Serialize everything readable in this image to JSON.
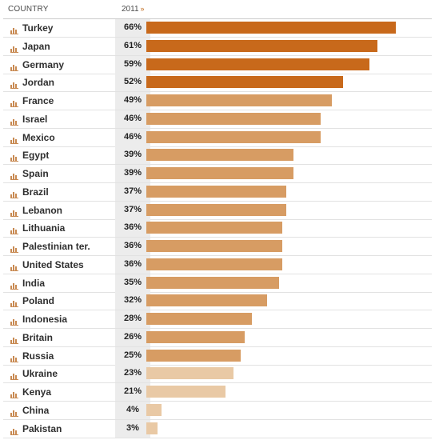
{
  "header": {
    "country_label": "COUNTRY",
    "year_label": "2011",
    "sort_icon": "chevron-down-icon"
  },
  "colors": {
    "dark": "#c8691b",
    "medium": "#d79c63",
    "light": "#e9c9a5",
    "icon": "#c88a52"
  },
  "chart_data": {
    "type": "bar",
    "orientation": "horizontal",
    "title": "",
    "xlabel": "",
    "ylabel": "",
    "xlim": [
      0,
      70
    ],
    "grid": false,
    "categories": [
      "Turkey",
      "Japan",
      "Germany",
      "Jordan",
      "France",
      "Israel",
      "Mexico",
      "Egypt",
      "Spain",
      "Brazil",
      "Lebanon",
      "Lithuania",
      "Palestinian ter.",
      "United States",
      "India",
      "Poland",
      "Indonesia",
      "Britain",
      "Russia",
      "Ukraine",
      "Kenya",
      "China",
      "Pakistan"
    ],
    "values": [
      66,
      61,
      59,
      52,
      49,
      46,
      46,
      39,
      39,
      37,
      37,
      36,
      36,
      36,
      35,
      32,
      28,
      26,
      25,
      23,
      21,
      4,
      3
    ],
    "labels": [
      "66%",
      "61%",
      "59%",
      "52%",
      "49%",
      "46%",
      "46%",
      "39%",
      "39%",
      "37%",
      "37%",
      "36%",
      "36%",
      "36%",
      "35%",
      "32%",
      "28%",
      "26%",
      "25%",
      "23%",
      "21%",
      "4%",
      "3%"
    ],
    "bar_shades": [
      "dark",
      "dark",
      "dark",
      "dark",
      "medium",
      "medium",
      "medium",
      "medium",
      "medium",
      "medium",
      "medium",
      "medium",
      "medium",
      "medium",
      "medium",
      "medium",
      "medium",
      "medium",
      "medium",
      "light",
      "light",
      "light",
      "light"
    ]
  }
}
